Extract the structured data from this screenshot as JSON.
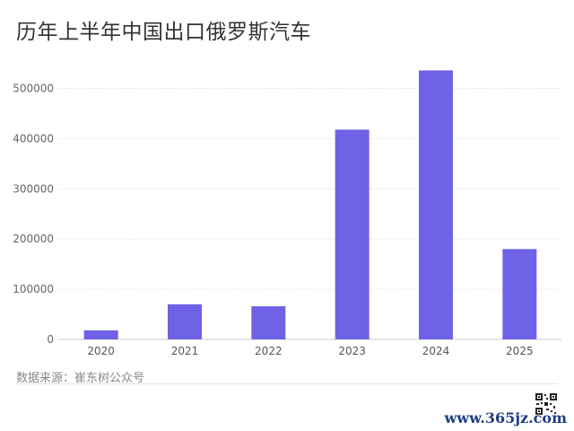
{
  "title": "历年上半年中国出口俄罗斯汽车",
  "source": "数据来源：崔东树公众号",
  "watermark": "www.365jz.com",
  "chart_data": {
    "type": "bar",
    "categories": [
      "2020",
      "2021",
      "2022",
      "2023",
      "2024",
      "2025"
    ],
    "values": [
      18000,
      70000,
      66000,
      418000,
      536000,
      180000
    ],
    "yticks": [
      0,
      100000,
      200000,
      300000,
      400000,
      500000
    ],
    "ylim": [
      0,
      560000
    ],
    "bar_color": "#6f62e6",
    "grid": true
  }
}
